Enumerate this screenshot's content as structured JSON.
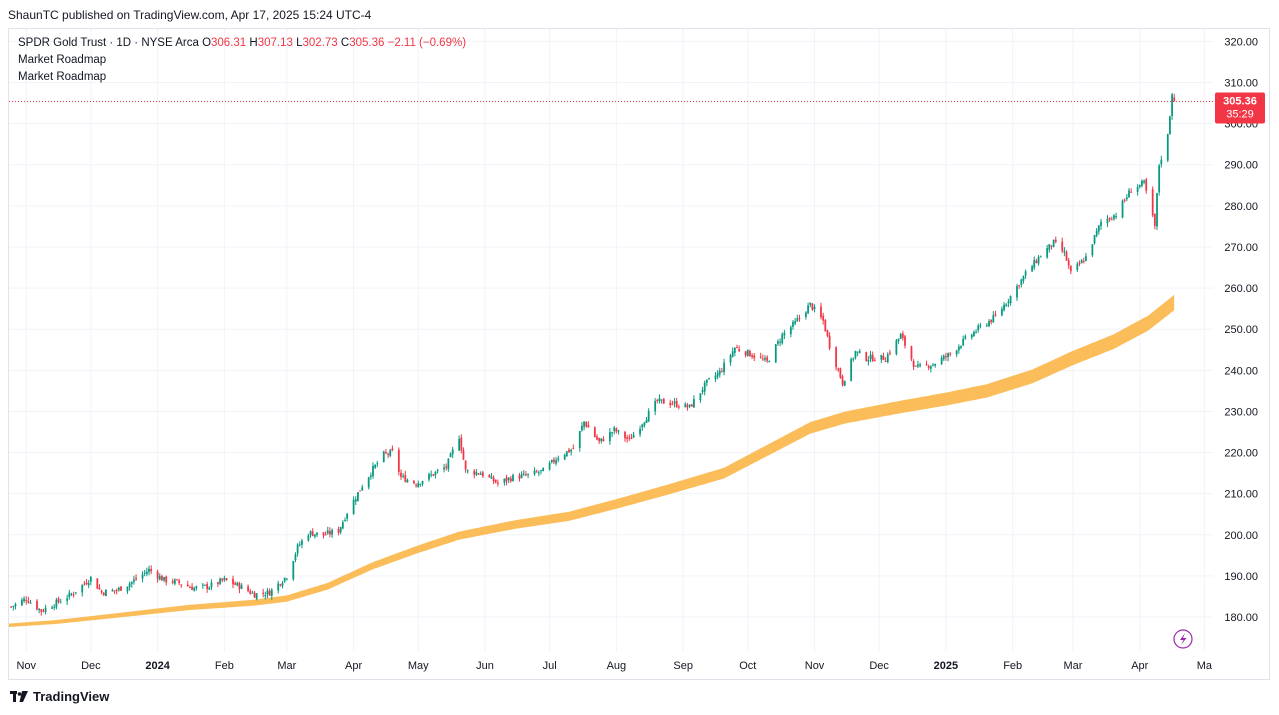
{
  "header": {
    "published": "ShaunTC published on TradingView.com, Apr 17, 2025 15:24 UTC-4"
  },
  "legend": {
    "symbol": "SPDR Gold Trust · 1D · NYSE Arca",
    "open_label": "O",
    "open": "306.31",
    "high_label": "H",
    "high": "307.13",
    "low_label": "L",
    "low": "302.73",
    "close_label": "C",
    "close": "305.36",
    "change": "−2.11 (−0.69%)",
    "indicator_1": "Market Roadmap",
    "indicator_2": "Market Roadmap"
  },
  "price_tag": {
    "price": "305.36",
    "countdown": "35:29",
    "color": "#f23645"
  },
  "footer": {
    "brand": "TradingView"
  },
  "colors": {
    "up": "#089981",
    "down": "#f23645",
    "band": "#fbbd5a",
    "grid": "#f0f3fa"
  },
  "icons": {
    "flash": "lightning-icon",
    "logo": "tradingview-logo-icon"
  },
  "chart_data": {
    "type": "candlestick",
    "title": "SPDR Gold Trust · 1D · NYSE Arca",
    "y_ticks": [
      "180.00",
      "190.00",
      "200.00",
      "210.00",
      "220.00",
      "230.00",
      "240.00",
      "250.00",
      "260.00",
      "270.00",
      "280.00",
      "290.00",
      "300.00",
      "310.00",
      "320.00"
    ],
    "ylim": [
      171.5,
      323
    ],
    "x_labels": [
      {
        "label": "Nov",
        "date": "2023-11-01",
        "bold": false
      },
      {
        "label": "Dec",
        "date": "2023-12-01",
        "bold": false
      },
      {
        "label": "2024",
        "date": "2024-01-01",
        "bold": true
      },
      {
        "label": "Feb",
        "date": "2024-02-01",
        "bold": false
      },
      {
        "label": "Mar",
        "date": "2024-03-01",
        "bold": false
      },
      {
        "label": "Apr",
        "date": "2024-04-01",
        "bold": false
      },
      {
        "label": "May",
        "date": "2024-05-01",
        "bold": false
      },
      {
        "label": "Jun",
        "date": "2024-06-01",
        "bold": false
      },
      {
        "label": "Jul",
        "date": "2024-07-01",
        "bold": false
      },
      {
        "label": "Aug",
        "date": "2024-08-01",
        "bold": false
      },
      {
        "label": "Sep",
        "date": "2024-09-01",
        "bold": false
      },
      {
        "label": "Oct",
        "date": "2024-10-01",
        "bold": false
      },
      {
        "label": "Nov",
        "date": "2024-11-01",
        "bold": false
      },
      {
        "label": "Dec",
        "date": "2024-12-01",
        "bold": false
      },
      {
        "label": "2025",
        "date": "2025-01-01",
        "bold": true
      },
      {
        "label": "Feb",
        "date": "2025-02-01",
        "bold": false
      },
      {
        "label": "Mar",
        "date": "2025-03-01",
        "bold": false
      },
      {
        "label": "Apr",
        "date": "2025-04-01",
        "bold": false
      },
      {
        "label": "Ma",
        "date": "2025-05-01",
        "bold": false
      }
    ],
    "x_range": [
      "2023-10-24",
      "2025-05-05"
    ],
    "price_series": [
      {
        "date": "2023-10-25",
        "close": 182.5
      },
      {
        "date": "2023-11-01",
        "close": 184.5
      },
      {
        "date": "2023-11-08",
        "close": 181.5
      },
      {
        "date": "2023-11-15",
        "close": 183.5
      },
      {
        "date": "2023-11-22",
        "close": 185.5
      },
      {
        "date": "2023-12-01",
        "close": 189.5
      },
      {
        "date": "2023-12-06",
        "close": 186.0
      },
      {
        "date": "2023-12-13",
        "close": 186.5
      },
      {
        "date": "2023-12-20",
        "close": 188.5
      },
      {
        "date": "2023-12-28",
        "close": 191.5
      },
      {
        "date": "2024-01-04",
        "close": 189.0
      },
      {
        "date": "2024-01-10",
        "close": 188.5
      },
      {
        "date": "2024-01-18",
        "close": 187.0
      },
      {
        "date": "2024-01-25",
        "close": 187.5
      },
      {
        "date": "2024-02-01",
        "close": 189.0
      },
      {
        "date": "2024-02-08",
        "close": 187.5
      },
      {
        "date": "2024-02-15",
        "close": 185.5
      },
      {
        "date": "2024-02-22",
        "close": 186.0
      },
      {
        "date": "2024-03-01",
        "close": 190.0
      },
      {
        "date": "2024-03-06",
        "close": 197.0
      },
      {
        "date": "2024-03-11",
        "close": 200.5
      },
      {
        "date": "2024-03-18",
        "close": 200.0
      },
      {
        "date": "2024-03-25",
        "close": 201.0
      },
      {
        "date": "2024-03-29",
        "close": 205.5
      },
      {
        "date": "2024-04-05",
        "close": 212.0
      },
      {
        "date": "2024-04-10",
        "close": 216.0
      },
      {
        "date": "2024-04-15",
        "close": 219.5
      },
      {
        "date": "2024-04-19",
        "close": 220.0
      },
      {
        "date": "2024-04-23",
        "close": 214.0
      },
      {
        "date": "2024-04-30",
        "close": 212.5
      },
      {
        "date": "2024-05-07",
        "close": 214.5
      },
      {
        "date": "2024-05-14",
        "close": 216.5
      },
      {
        "date": "2024-05-20",
        "close": 224.0
      },
      {
        "date": "2024-05-23",
        "close": 215.5
      },
      {
        "date": "2024-05-30",
        "close": 215.0
      },
      {
        "date": "2024-06-07",
        "close": 212.5
      },
      {
        "date": "2024-06-14",
        "close": 214.0
      },
      {
        "date": "2024-06-21",
        "close": 214.5
      },
      {
        "date": "2024-06-28",
        "close": 215.5
      },
      {
        "date": "2024-07-05",
        "close": 219.0
      },
      {
        "date": "2024-07-12",
        "close": 221.0
      },
      {
        "date": "2024-07-17",
        "close": 227.5
      },
      {
        "date": "2024-07-24",
        "close": 222.5
      },
      {
        "date": "2024-07-31",
        "close": 225.5
      },
      {
        "date": "2024-08-07",
        "close": 223.0
      },
      {
        "date": "2024-08-14",
        "close": 228.0
      },
      {
        "date": "2024-08-20",
        "close": 232.5
      },
      {
        "date": "2024-08-27",
        "close": 232.0
      },
      {
        "date": "2024-09-04",
        "close": 231.0
      },
      {
        "date": "2024-09-12",
        "close": 237.0
      },
      {
        "date": "2024-09-18",
        "close": 239.5
      },
      {
        "date": "2024-09-25",
        "close": 245.5
      },
      {
        "date": "2024-10-02",
        "close": 244.0
      },
      {
        "date": "2024-10-10",
        "close": 242.0
      },
      {
        "date": "2024-10-17",
        "close": 248.5
      },
      {
        "date": "2024-10-23",
        "close": 251.5
      },
      {
        "date": "2024-10-30",
        "close": 256.0
      },
      {
        "date": "2024-11-05",
        "close": 252.0
      },
      {
        "date": "2024-11-08",
        "close": 246.0
      },
      {
        "date": "2024-11-14",
        "close": 237.0
      },
      {
        "date": "2024-11-20",
        "close": 244.5
      },
      {
        "date": "2024-11-25",
        "close": 243.0
      },
      {
        "date": "2024-12-04",
        "close": 243.0
      },
      {
        "date": "2024-12-11",
        "close": 248.5
      },
      {
        "date": "2024-12-18",
        "close": 240.5
      },
      {
        "date": "2024-12-26",
        "close": 241.5
      },
      {
        "date": "2025-01-03",
        "close": 244.0
      },
      {
        "date": "2025-01-10",
        "close": 247.5
      },
      {
        "date": "2025-01-17",
        "close": 250.5
      },
      {
        "date": "2025-01-24",
        "close": 253.0
      },
      {
        "date": "2025-01-31",
        "close": 258.0
      },
      {
        "date": "2025-02-07",
        "close": 263.5
      },
      {
        "date": "2025-02-14",
        "close": 268.0
      },
      {
        "date": "2025-02-20",
        "close": 271.0
      },
      {
        "date": "2025-02-25",
        "close": 268.5
      },
      {
        "date": "2025-02-28",
        "close": 263.5
      },
      {
        "date": "2025-03-07",
        "close": 267.5
      },
      {
        "date": "2025-03-14",
        "close": 276.0
      },
      {
        "date": "2025-03-21",
        "close": 278.0
      },
      {
        "date": "2025-03-28",
        "close": 284.0
      },
      {
        "date": "2025-04-03",
        "close": 285.5
      },
      {
        "date": "2025-04-08",
        "close": 275.0
      },
      {
        "date": "2025-04-10",
        "close": 290.0
      },
      {
        "date": "2025-04-14",
        "close": 297.0
      },
      {
        "date": "2025-04-16",
        "close": 307.5
      },
      {
        "date": "2025-04-17",
        "close": 305.36
      }
    ],
    "band_series": [
      {
        "date": "2023-10-24",
        "value": 178.0
      },
      {
        "date": "2023-11-15",
        "value": 178.8
      },
      {
        "date": "2023-12-15",
        "value": 180.5
      },
      {
        "date": "2024-01-15",
        "value": 182.3
      },
      {
        "date": "2024-02-15",
        "value": 183.5
      },
      {
        "date": "2024-03-01",
        "value": 184.5
      },
      {
        "date": "2024-03-20",
        "value": 187.5
      },
      {
        "date": "2024-04-10",
        "value": 192.5
      },
      {
        "date": "2024-05-01",
        "value": 196.5
      },
      {
        "date": "2024-05-20",
        "value": 199.8
      },
      {
        "date": "2024-06-15",
        "value": 202.5
      },
      {
        "date": "2024-07-10",
        "value": 204.5
      },
      {
        "date": "2024-08-01",
        "value": 207.5
      },
      {
        "date": "2024-08-25",
        "value": 211.0
      },
      {
        "date": "2024-09-20",
        "value": 215.0
      },
      {
        "date": "2024-10-10",
        "value": 220.5
      },
      {
        "date": "2024-10-30",
        "value": 226.0
      },
      {
        "date": "2024-11-15",
        "value": 228.5
      },
      {
        "date": "2024-12-10",
        "value": 231.0
      },
      {
        "date": "2025-01-01",
        "value": 233.0
      },
      {
        "date": "2025-01-20",
        "value": 235.0
      },
      {
        "date": "2025-02-10",
        "value": 238.5
      },
      {
        "date": "2025-03-01",
        "value": 243.0
      },
      {
        "date": "2025-03-20",
        "value": 247.0
      },
      {
        "date": "2025-04-05",
        "value": 251.5
      },
      {
        "date": "2025-04-17",
        "value": 256.5
      }
    ],
    "band_half_width": 1.2,
    "last_price": 305.36
  }
}
